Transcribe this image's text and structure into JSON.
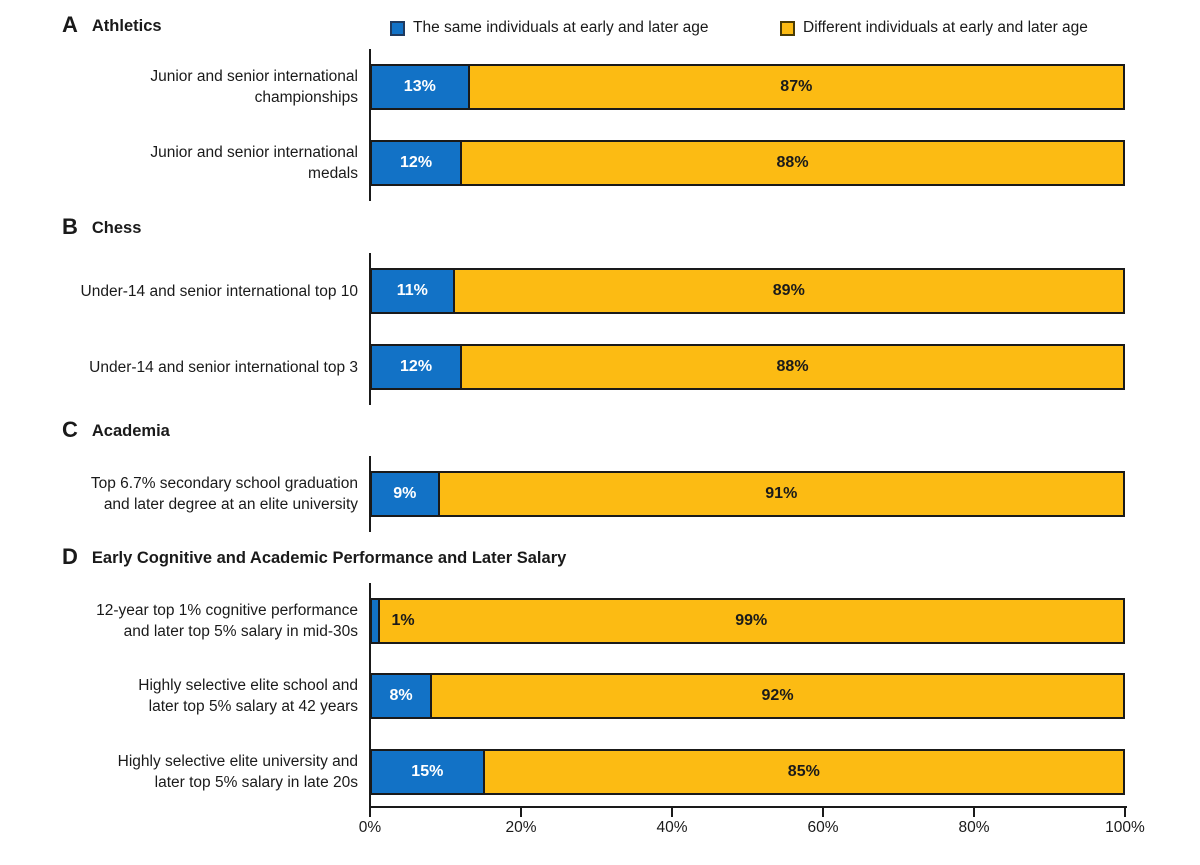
{
  "chart_data": {
    "type": "bar",
    "stacked": true,
    "orientation": "horizontal",
    "unit": "percent",
    "xlim": [
      0,
      100
    ],
    "x_ticks": [
      "0%",
      "20%",
      "40%",
      "60%",
      "80%",
      "100%"
    ],
    "legend_position": "top",
    "grid": false,
    "series": [
      {
        "name": "The same individuals at early and later age",
        "color": "#1272c6"
      },
      {
        "name": "Different individuals at early and later age",
        "color": "#fcbb13"
      }
    ],
    "groups": [
      {
        "panel": "A",
        "title": "Athletics",
        "rows": [
          {
            "category": "Junior and senior international\nchampionships",
            "same": 13,
            "different": 87,
            "same_label": "13%",
            "different_label": "87%"
          },
          {
            "category": "Junior and senior international\nmedals",
            "same": 12,
            "different": 88,
            "same_label": "12%",
            "different_label": "88%"
          }
        ]
      },
      {
        "panel": "B",
        "title": "Chess",
        "rows": [
          {
            "category": "Under-14 and senior international top 10",
            "same": 11,
            "different": 89,
            "same_label": "11%",
            "different_label": "89%"
          },
          {
            "category": "Under-14 and senior international top 3",
            "same": 12,
            "different": 88,
            "same_label": "12%",
            "different_label": "88%"
          }
        ]
      },
      {
        "panel": "C",
        "title": "Academia",
        "rows": [
          {
            "category": "Top 6.7% secondary school graduation\nand later degree at an elite university",
            "same": 9,
            "different": 91,
            "same_label": "9%",
            "different_label": "91%"
          }
        ]
      },
      {
        "panel": "D",
        "title": "Early Cognitive and Academic Performance and Later Salary",
        "rows": [
          {
            "category": "12-year top 1% cognitive performance\nand later top 5% salary in mid-30s",
            "same": 1,
            "different": 99,
            "same_label": "1%",
            "different_label": "99%"
          },
          {
            "category": "Highly selective elite school and\nlater top 5% salary at 42 years",
            "same": 8,
            "different": 92,
            "same_label": "8%",
            "different_label": "92%"
          },
          {
            "category": "Highly selective elite university and\nlater top 5% salary in late 20s",
            "same": 15,
            "different": 85,
            "same_label": "15%",
            "different_label": "85%"
          }
        ]
      }
    ]
  }
}
